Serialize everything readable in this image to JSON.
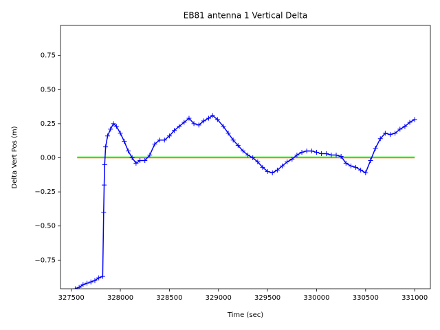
{
  "chart_data": {
    "type": "line",
    "title": "EB81 antenna 1 Vertical Delta",
    "x_label": "Time (sec)",
    "y_label": "Delta Vert Pos (m)",
    "xlim": [
      327390,
      331160
    ],
    "ylim": [
      -0.96,
      0.97
    ],
    "xticks": [
      327500,
      328000,
      328500,
      329000,
      329500,
      330000,
      330500,
      331000
    ],
    "yticks": [
      {
        "value": -0.75,
        "label": "−0.75"
      },
      {
        "value": -0.5,
        "label": "−0.50"
      },
      {
        "value": -0.25,
        "label": "−0.25"
      },
      {
        "value": 0,
        "label": "0.00"
      },
      {
        "value": 0.25,
        "label": "0.25"
      },
      {
        "value": 0.5,
        "label": "0.50"
      },
      0.75
    ],
    "reference_lines": [
      {
        "x": [
          327560,
          331000
        ],
        "values": [
          0.005,
          0.005
        ],
        "color": "#00ff00"
      },
      {
        "x": [
          327560,
          331000
        ],
        "values": [
          0,
          0
        ],
        "color": "#ff7f0e"
      }
    ],
    "series": [
      {
        "color": "#0000ff",
        "marker": "+",
        "x": [
          327540,
          327580,
          327620,
          327660,
          327700,
          327740,
          327780,
          327820,
          327830,
          327835,
          327840,
          327850,
          327870,
          327900,
          327930,
          327960,
          328000,
          328040,
          328080,
          328120,
          328160,
          328200,
          328250,
          328300,
          328350,
          328400,
          328450,
          328500,
          328550,
          328600,
          328650,
          328700,
          328750,
          328800,
          328850,
          328900,
          328940,
          328990,
          329050,
          329100,
          329150,
          329200,
          329250,
          329300,
          329350,
          329400,
          329450,
          329500,
          329550,
          329600,
          329650,
          329700,
          329750,
          329800,
          329850,
          329900,
          329950,
          330000,
          330050,
          330100,
          330150,
          330200,
          330250,
          330300,
          330350,
          330400,
          330450,
          330500,
          330550,
          330600,
          330650,
          330700,
          330750,
          330800,
          330850,
          330900,
          330950,
          331000
        ],
        "values": [
          -0.96,
          -0.95,
          -0.93,
          -0.92,
          -0.91,
          -0.9,
          -0.88,
          -0.87,
          -0.4,
          -0.2,
          -0.05,
          0.08,
          0.16,
          0.21,
          0.25,
          0.23,
          0.18,
          0.12,
          0.05,
          0.0,
          -0.04,
          -0.02,
          -0.02,
          0.02,
          0.1,
          0.13,
          0.13,
          0.16,
          0.2,
          0.23,
          0.26,
          0.29,
          0.25,
          0.24,
          0.27,
          0.29,
          0.31,
          0.28,
          0.23,
          0.18,
          0.13,
          0.09,
          0.05,
          0.02,
          0.0,
          -0.03,
          -0.07,
          -0.1,
          -0.11,
          -0.09,
          -0.06,
          -0.03,
          -0.01,
          0.02,
          0.04,
          0.05,
          0.05,
          0.04,
          0.03,
          0.03,
          0.02,
          0.02,
          0.01,
          -0.04,
          -0.06,
          -0.07,
          -0.09,
          -0.11,
          -0.02,
          0.07,
          0.14,
          0.18,
          0.17,
          0.18,
          0.21,
          0.23,
          0.26,
          0.28
        ]
      }
    ]
  }
}
